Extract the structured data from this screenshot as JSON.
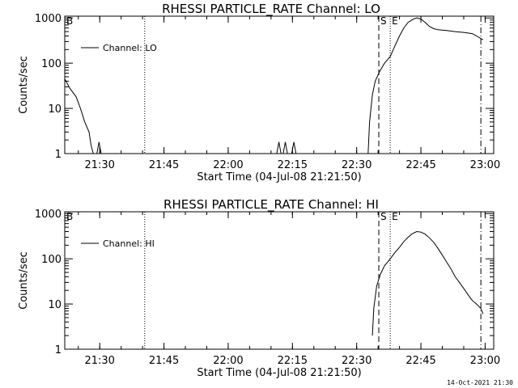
{
  "footer_timestamp": "14-Oct-2021 21:30",
  "chart_data": [
    {
      "type": "line",
      "title": "RHESSI PARTICLE_RATE Channel: LO",
      "xlabel": "Start Time (04-Jul-08 21:21:50)",
      "ylabel": "Counts/sec",
      "y_scale": "log",
      "ylim": [
        1,
        1000
      ],
      "xlim": [
        "21:21:50",
        "23:02:00"
      ],
      "x_tick_labels": [
        "21:30",
        "21:45",
        "22:00",
        "22:15",
        "22:30",
        "22:45",
        "23:00"
      ],
      "y_tick_labels": [
        "1",
        "10",
        "100",
        "1000"
      ],
      "legend": {
        "position": "top-left",
        "entries": [
          "Channel: LO"
        ]
      },
      "markers": [
        {
          "time": "21:21:50",
          "label": "B",
          "style": "solid"
        },
        {
          "time": "21:40:30",
          "label": "",
          "style": "dotted"
        },
        {
          "time": "22:35:10",
          "label": "S",
          "style": "dashed"
        },
        {
          "time": "22:37:50",
          "label": "E",
          "style": "dotted"
        },
        {
          "time": "22:59:00",
          "label": "",
          "style": "dashdot"
        }
      ],
      "series": [
        {
          "name": "Channel: LO",
          "segments": [
            [
              [
                "21:21:50",
                45
              ],
              [
                "21:23:00",
                28
              ],
              [
                "21:24:30",
                18
              ],
              [
                "21:25:30",
                10
              ],
              [
                "21:26:30",
                5
              ],
              [
                "21:27:30",
                3
              ],
              [
                "21:28:00",
                1.5
              ],
              [
                "21:28:30",
                1
              ]
            ],
            [
              [
                "21:29:20",
                1
              ],
              [
                "21:29:50",
                1.8
              ],
              [
                "21:30:20",
                1
              ]
            ],
            [
              [
                "22:11:20",
                1
              ],
              [
                "22:11:50",
                1.8
              ],
              [
                "22:12:20",
                1
              ]
            ],
            [
              [
                "22:12:50",
                1
              ],
              [
                "22:13:20",
                1.8
              ],
              [
                "22:13:50",
                1
              ]
            ],
            [
              [
                "22:14:50",
                1
              ],
              [
                "22:15:20",
                1.8
              ],
              [
                "22:15:50",
                1
              ]
            ],
            [
              [
                "22:32:40",
                1
              ],
              [
                "22:33:00",
                5
              ],
              [
                "22:33:40",
                20
              ],
              [
                "22:34:20",
                40
              ],
              [
                "22:35:20",
                65
              ],
              [
                "22:36:30",
                100
              ],
              [
                "22:37:50",
                140
              ],
              [
                "22:39:00",
                250
              ],
              [
                "22:40:00",
                400
              ],
              [
                "22:41:00",
                600
              ],
              [
                "22:42:00",
                800
              ],
              [
                "22:43:00",
                920
              ],
              [
                "22:44:00",
                1000
              ],
              [
                "22:45:00",
                950
              ],
              [
                "22:46:00",
                800
              ],
              [
                "22:47:00",
                650
              ],
              [
                "22:48:00",
                580
              ],
              [
                "22:49:00",
                550
              ],
              [
                "22:51:00",
                530
              ],
              [
                "22:53:00",
                500
              ],
              [
                "22:55:00",
                480
              ],
              [
                "22:57:00",
                450
              ],
              [
                "22:58:00",
                400
              ],
              [
                "22:59:30",
                330
              ]
            ]
          ]
        }
      ]
    },
    {
      "type": "line",
      "title": "RHESSI PARTICLE_RATE Channel: HI",
      "xlabel": "Start Time (04-Jul-08 21:21:50)",
      "ylabel": "Counts/sec",
      "y_scale": "log",
      "ylim": [
        1,
        1000
      ],
      "xlim": [
        "21:21:50",
        "23:02:00"
      ],
      "x_tick_labels": [
        "21:30",
        "21:45",
        "22:00",
        "22:15",
        "22:30",
        "22:45",
        "23:00"
      ],
      "y_tick_labels": [
        "1",
        "10",
        "100",
        "1000"
      ],
      "legend": {
        "position": "top-left",
        "entries": [
          "Channel: HI"
        ]
      },
      "markers": [
        {
          "time": "21:21:50",
          "label": "B",
          "style": "solid"
        },
        {
          "time": "21:40:30",
          "label": "",
          "style": "dotted"
        },
        {
          "time": "22:35:10",
          "label": "S",
          "style": "dashed"
        },
        {
          "time": "22:37:50",
          "label": "E",
          "style": "dotted"
        },
        {
          "time": "22:59:00",
          "label": "",
          "style": "dashdot"
        }
      ],
      "series": [
        {
          "name": "Channel: HI",
          "segments": [
            [
              [
                "22:33:40",
                2
              ],
              [
                "22:34:00",
                8
              ],
              [
                "22:34:40",
                25
              ],
              [
                "22:35:30",
                45
              ],
              [
                "22:36:30",
                70
              ],
              [
                "22:37:50",
                100
              ],
              [
                "22:39:00",
                140
              ],
              [
                "22:40:00",
                180
              ],
              [
                "22:41:00",
                240
              ],
              [
                "22:42:00",
                300
              ],
              [
                "22:43:00",
                360
              ],
              [
                "22:44:00",
                400
              ],
              [
                "22:45:00",
                390
              ],
              [
                "22:46:00",
                350
              ],
              [
                "22:47:00",
                290
              ],
              [
                "22:48:00",
                230
              ],
              [
                "22:49:00",
                170
              ],
              [
                "22:50:00",
                120
              ],
              [
                "22:51:00",
                85
              ],
              [
                "22:52:00",
                60
              ],
              [
                "22:53:00",
                40
              ],
              [
                "22:54:00",
                30
              ],
              [
                "22:55:00",
                22
              ],
              [
                "22:56:00",
                16
              ],
              [
                "22:57:00",
                12
              ],
              [
                "22:58:00",
                10
              ],
              [
                "22:59:00",
                8
              ],
              [
                "22:59:30",
                6
              ]
            ]
          ]
        }
      ]
    }
  ]
}
